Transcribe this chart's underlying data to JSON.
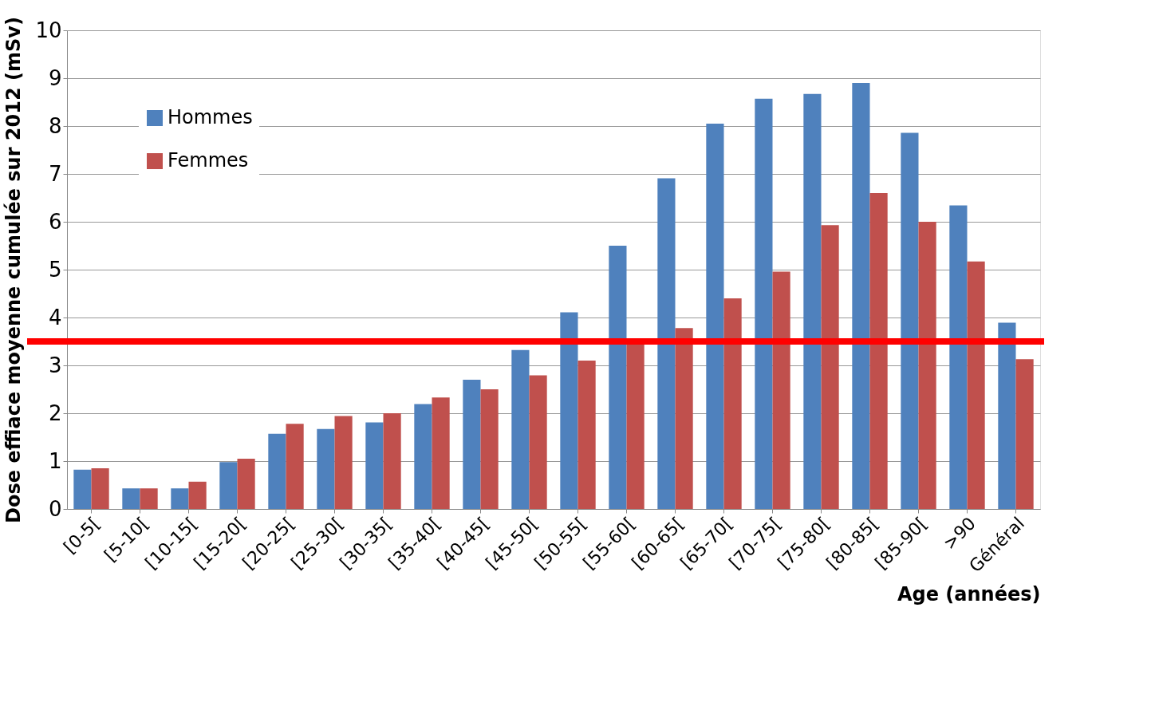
{
  "chart_data": {
    "type": "bar",
    "xlabel": "Age (années)",
    "ylabel": "Dose effiace moyenne cumulée sur 2012 (mSv)",
    "categories": [
      "[0-5[",
      "[5-10[",
      "[10-15[",
      "[15-20[",
      "[20-25[",
      "[25-30[",
      "[30-35[",
      "[35-40[",
      "[40-45[",
      "[45-50[",
      "[50-55[",
      "[55-60[",
      "[60-65[",
      "[65-70[",
      "[70-75[",
      "[75-80[",
      "[80-85[",
      "[85-90[",
      ">90",
      "Général"
    ],
    "series": [
      {
        "name": "Hommes",
        "color": "#4f81bd",
        "values": [
          0.82,
          0.43,
          0.43,
          0.98,
          1.57,
          1.67,
          1.81,
          2.19,
          2.7,
          3.32,
          4.11,
          5.5,
          6.91,
          8.05,
          8.57,
          8.67,
          8.9,
          7.86,
          6.34,
          3.89
        ]
      },
      {
        "name": "Femmes",
        "color": "#c0504d",
        "values": [
          0.85,
          0.43,
          0.57,
          1.05,
          1.78,
          1.94,
          2.0,
          2.33,
          2.5,
          2.79,
          3.1,
          3.5,
          3.78,
          4.4,
          4.96,
          5.93,
          6.6,
          6.0,
          5.17,
          3.13
        ]
      }
    ],
    "ylim": [
      0,
      10
    ],
    "yticks": [
      0,
      1,
      2,
      3,
      4,
      5,
      6,
      7,
      8,
      9,
      10
    ],
    "grid": "y",
    "legend": "top left",
    "ref_lines": [
      {
        "axis": "y",
        "value": 3.5,
        "color": "#ff0000"
      }
    ]
  }
}
